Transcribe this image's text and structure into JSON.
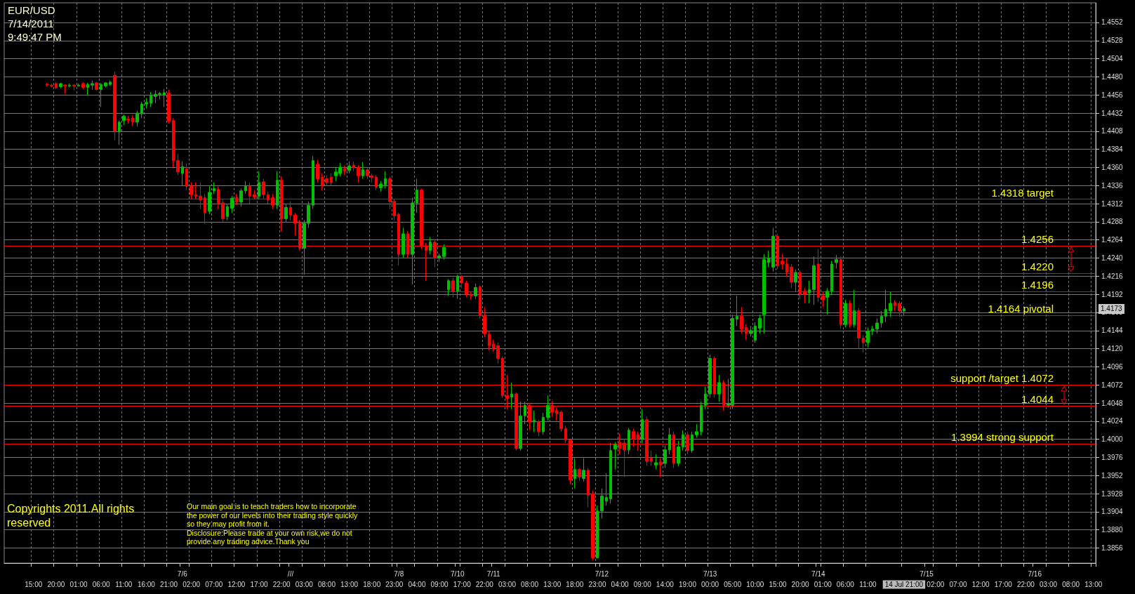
{
  "chart_data": {
    "type": "candlestick",
    "title": "EUR/USD",
    "subtitle": "7/14/2011\n9:49:47 PM",
    "categories": [
      null,
      null,
      null,
      null,
      null,
      null,
      "15:00",
      null,
      null,
      null,
      null,
      "20:00",
      null,
      null,
      null,
      null,
      "01:00",
      null,
      null,
      null,
      null,
      "06:00",
      null,
      null,
      null,
      null,
      "11:00",
      null,
      null,
      null,
      null,
      "16:00",
      null,
      null,
      null,
      null,
      "21:00",
      null,
      null,
      "7/6\n",
      null,
      "02:00",
      null,
      null,
      null,
      null,
      "07:00",
      null,
      null,
      null,
      null,
      "12:00",
      null,
      null,
      null,
      null,
      "17:00",
      null,
      null,
      null,
      null,
      "22:00",
      null,
      "///\n",
      null,
      null,
      "03:00",
      null,
      null,
      null,
      null,
      "08:00",
      null,
      null,
      null,
      null,
      "13:00",
      null,
      null,
      null,
      null,
      "18:00",
      null,
      null,
      null,
      null,
      "23:00",
      "7/8\n",
      null,
      null,
      null,
      "04:00",
      null,
      null,
      null,
      null,
      "09:00",
      null,
      null,
      null,
      "7/10\n",
      "17:00",
      null,
      null,
      null,
      null,
      "22:00",
      null,
      "7/11\n",
      null,
      null,
      "03:00",
      null,
      null,
      null,
      null,
      "08:00",
      null,
      null,
      null,
      null,
      "13:00",
      null,
      null,
      null,
      null,
      "18:00",
      null,
      null,
      null,
      null,
      "23:00",
      "7/12\n",
      null,
      null,
      null,
      "04:00",
      null,
      null,
      null,
      null,
      "09:00",
      null,
      null,
      null,
      null,
      "14:00",
      null,
      null,
      null,
      null,
      "19:00",
      null,
      null,
      null,
      null,
      "7/13\n00:00",
      null,
      null,
      null,
      null,
      "05:00",
      null,
      null,
      null,
      null,
      "10:00",
      null,
      null,
      null,
      null,
      "15:00",
      null,
      null,
      null,
      null,
      "20:00",
      null,
      null,
      null,
      "7/14\n",
      "01:00",
      null,
      null,
      null,
      null,
      "06:00",
      null,
      null,
      null,
      null,
      "11:00",
      null,
      null,
      null,
      null,
      null,
      null,
      null,
      "14 Jul 21:00",
      null,
      null,
      null,
      null,
      "7/15\n",
      null,
      "02:00",
      null,
      null,
      null,
      null,
      "07:00",
      null,
      null,
      null,
      null,
      "12:00",
      null,
      null,
      null,
      null,
      "17:00",
      null,
      null,
      null,
      null,
      "22:00",
      null,
      "7/16\n",
      null,
      null,
      "03:00",
      null,
      null,
      null,
      null,
      "08:00",
      null,
      null,
      null,
      null,
      "13:00"
    ],
    "ohlc": [
      null,
      null,
      null,
      null,
      null,
      null,
      null,
      null,
      null,
      [
        1.447,
        1.4472,
        1.4467,
        1.4469
      ],
      [
        1.4469,
        1.4471,
        1.4466,
        1.4468
      ],
      [
        1.4471,
        1.4473,
        1.4464,
        1.4466
      ],
      [
        1.4467,
        1.4472,
        1.4465,
        1.4471
      ],
      [
        1.4469,
        1.447,
        1.4458,
        1.4468
      ],
      [
        1.4468,
        1.4471,
        1.4466,
        1.4469
      ],
      [
        1.4469,
        1.447,
        1.4462,
        1.4468
      ],
      [
        1.4468,
        1.4471,
        1.4467,
        1.4469
      ],
      [
        1.4471,
        1.4473,
        1.4464,
        1.4466
      ],
      [
        1.4466,
        1.4472,
        1.4455,
        1.447
      ],
      [
        1.4469,
        1.4475,
        1.4463,
        1.4471
      ],
      [
        1.4472,
        1.4473,
        1.4462,
        1.4463
      ],
      [
        1.4463,
        1.4472,
        1.444,
        1.447
      ],
      [
        1.4468,
        1.4473,
        1.4466,
        1.4472
      ],
      [
        1.447,
        1.4475,
        1.4468,
        1.4473
      ],
      [
        1.4482,
        1.4487,
        1.4396,
        1.4408
      ],
      [
        1.4407,
        1.4422,
        1.439,
        1.442
      ],
      [
        1.4422,
        1.443,
        1.4416,
        1.4428
      ],
      [
        1.4424,
        1.4428,
        1.4418,
        1.4423
      ],
      [
        1.4425,
        1.4429,
        1.4415,
        1.442
      ],
      [
        1.442,
        1.4435,
        1.4414,
        1.4432
      ],
      [
        1.4431,
        1.4447,
        1.4425,
        1.4444
      ],
      [
        1.4444,
        1.4452,
        1.4438,
        1.4446
      ],
      [
        1.4445,
        1.446,
        1.444,
        1.4455
      ],
      [
        1.4454,
        1.4462,
        1.4445,
        1.4457
      ],
      [
        1.4457,
        1.446,
        1.445,
        1.4458
      ],
      [
        1.4456,
        1.4464,
        1.444,
        1.4459
      ],
      [
        1.4458,
        1.4463,
        1.4418,
        1.4421
      ],
      [
        1.4422,
        1.4425,
        1.436,
        1.4369
      ],
      [
        1.4369,
        1.4378,
        1.435,
        1.4354
      ],
      [
        1.4352,
        1.4368,
        1.4335,
        1.4361
      ],
      [
        1.4358,
        1.4365,
        1.433,
        1.4335
      ],
      [
        1.4335,
        1.434,
        1.4318,
        1.4324
      ],
      [
        1.4324,
        1.434,
        1.4318,
        1.4322
      ],
      [
        1.4322,
        1.434,
        1.4305,
        1.4317
      ],
      [
        1.432,
        1.4325,
        1.4285,
        1.43
      ],
      [
        1.4302,
        1.4335,
        1.4298,
        1.4327
      ],
      [
        1.4329,
        1.434,
        1.4325,
        1.4332
      ],
      [
        1.4331,
        1.4335,
        1.4305,
        1.4313
      ],
      [
        1.4313,
        1.4318,
        1.4288,
        1.4292
      ],
      [
        1.4295,
        1.4312,
        1.429,
        1.4308
      ],
      [
        1.4306,
        1.4322,
        1.43,
        1.4319
      ],
      [
        1.432,
        1.4325,
        1.431,
        1.4314
      ],
      [
        1.4314,
        1.4332,
        1.4308,
        1.4329
      ],
      [
        1.4329,
        1.4342,
        1.4325,
        1.4335
      ],
      [
        1.4335,
        1.434,
        1.4312,
        1.4322
      ],
      [
        1.4324,
        1.433,
        1.4318,
        1.4321
      ],
      [
        1.4322,
        1.4355,
        1.4318,
        1.434
      ],
      [
        1.4341,
        1.4345,
        1.4318,
        1.4324
      ],
      [
        1.4324,
        1.4328,
        1.4312,
        1.4317
      ],
      [
        1.432,
        1.4325,
        1.4305,
        1.431
      ],
      [
        1.431,
        1.4355,
        1.4305,
        1.4343
      ],
      [
        1.4343,
        1.4348,
        1.4275,
        1.4292
      ],
      [
        1.4292,
        1.4312,
        1.4288,
        1.4307
      ],
      [
        1.4307,
        1.4315,
        1.429,
        1.4297
      ],
      [
        1.4297,
        1.43,
        1.427,
        1.4286
      ],
      [
        1.4286,
        1.429,
        1.425,
        1.4253
      ],
      [
        1.4253,
        1.429,
        1.4218,
        1.4286
      ],
      [
        1.4286,
        1.4315,
        1.428,
        1.431
      ],
      [
        1.431,
        1.4375,
        1.4305,
        1.4369
      ],
      [
        1.4364,
        1.437,
        1.434,
        1.4345
      ],
      [
        1.4347,
        1.4352,
        1.433,
        1.4336
      ],
      [
        1.4345,
        1.435,
        1.4335,
        1.434
      ],
      [
        1.4347,
        1.4352,
        1.4336,
        1.434
      ],
      [
        1.4349,
        1.436,
        1.4342,
        1.4354
      ],
      [
        1.4352,
        1.4366,
        1.4348,
        1.436
      ],
      [
        1.4358,
        1.4362,
        1.435,
        1.4355
      ],
      [
        1.4356,
        1.4368,
        1.4352,
        1.4362
      ],
      [
        1.4363,
        1.4368,
        1.4355,
        1.436
      ],
      [
        1.436,
        1.4363,
        1.434,
        1.4349
      ],
      [
        1.4349,
        1.4367,
        1.4345,
        1.4357
      ],
      [
        1.4357,
        1.436,
        1.4345,
        1.4349
      ],
      [
        1.4349,
        1.4352,
        1.434,
        1.4347
      ],
      [
        1.4347,
        1.435,
        1.433,
        1.4334
      ],
      [
        1.4333,
        1.4342,
        1.4328,
        1.4338
      ],
      [
        1.4337,
        1.4355,
        1.4332,
        1.4345
      ],
      [
        1.4345,
        1.4348,
        1.4305,
        1.4315
      ],
      [
        1.4315,
        1.4318,
        1.429,
        1.4296
      ],
      [
        1.4298,
        1.43,
        1.423,
        1.4245
      ],
      [
        1.4245,
        1.428,
        1.424,
        1.4272
      ],
      [
        1.4272,
        1.4276,
        1.424,
        1.4245
      ],
      [
        1.4245,
        1.432,
        1.4205,
        1.4313
      ],
      [
        1.4313,
        1.4345,
        1.43,
        1.433
      ],
      [
        1.433,
        1.4332,
        1.4252,
        1.4256
      ],
      [
        1.4256,
        1.426,
        1.421,
        1.425
      ],
      [
        1.425,
        1.4268,
        1.4245,
        1.4261
      ],
      [
        1.4261,
        1.4264,
        1.4228,
        1.424
      ],
      [
        1.424,
        1.4246,
        1.4235,
        1.4243
      ],
      [
        1.4242,
        1.4258,
        1.4238,
        1.4254
      ],
      [
        1.4198,
        1.4212,
        1.419,
        1.421
      ],
      [
        1.421,
        1.4214,
        1.4188,
        1.4196
      ],
      [
        1.4196,
        1.4218,
        1.4186,
        1.4216
      ],
      [
        1.4216,
        1.4218,
        1.42,
        1.4207
      ],
      [
        1.4207,
        1.421,
        1.4188,
        1.4192
      ],
      [
        1.4192,
        1.4196,
        1.4185,
        1.419
      ],
      [
        1.419,
        1.4206,
        1.4186,
        1.4201
      ],
      [
        1.4202,
        1.4204,
        1.416,
        1.4164
      ],
      [
        1.4164,
        1.4175,
        1.4135,
        1.414
      ],
      [
        1.4139,
        1.4143,
        1.4118,
        1.4124
      ],
      [
        1.4126,
        1.4132,
        1.4116,
        1.412
      ],
      [
        1.4124,
        1.4128,
        1.41,
        1.4107
      ],
      [
        1.4107,
        1.411,
        1.4055,
        1.4058
      ],
      [
        1.4058,
        1.4085,
        1.404,
        1.4054
      ],
      [
        1.4056,
        1.4075,
        1.404,
        1.406
      ],
      [
        1.406,
        1.4062,
        1.3985,
        1.3988
      ],
      [
        1.3988,
        1.405,
        1.3985,
        1.4031
      ],
      [
        1.4031,
        1.405,
        1.402,
        1.4045
      ],
      [
        1.4045,
        1.4048,
        1.4012,
        1.4023
      ],
      [
        1.4023,
        1.4038,
        1.401,
        1.4025
      ],
      [
        1.4023,
        1.4026,
        1.4004,
        1.401
      ],
      [
        1.401,
        1.4035,
        1.4006,
        1.4029
      ],
      [
        1.4029,
        1.4058,
        1.4025,
        1.4045
      ],
      [
        1.4045,
        1.405,
        1.403,
        1.4036
      ],
      [
        1.4038,
        1.4042,
        1.4025,
        1.4034
      ],
      [
        1.4036,
        1.4038,
        1.401,
        1.4014
      ],
      [
        1.4014,
        1.4018,
        1.3995,
        1.3999
      ],
      [
        1.3999,
        1.4,
        1.394,
        1.3946
      ],
      [
        1.3948,
        1.3975,
        1.3935,
        1.396
      ],
      [
        1.396,
        1.3962,
        1.3945,
        1.395
      ],
      [
        1.3948,
        1.3975,
        1.3944,
        1.3959
      ],
      [
        1.3959,
        1.3962,
        1.391,
        1.3926
      ],
      [
        1.3928,
        1.3932,
        1.384,
        1.3843
      ],
      [
        1.3843,
        1.3912,
        1.3842,
        1.3905
      ],
      [
        1.3905,
        1.3935,
        1.3895,
        1.3925
      ],
      [
        1.3918,
        1.3955,
        1.3912,
        1.3923
      ],
      [
        1.3921,
        1.3995,
        1.3915,
        1.3985
      ],
      [
        1.3987,
        1.3996,
        1.396,
        1.3993
      ],
      [
        1.3996,
        1.4008,
        1.398,
        1.3988
      ],
      [
        1.3995,
        1.4,
        1.395,
        1.3986
      ],
      [
        1.3986,
        1.4015,
        1.398,
        1.4012
      ],
      [
        1.401,
        1.4014,
        1.399,
        1.4
      ],
      [
        1.4006,
        1.401,
        1.3985,
        1.4
      ],
      [
        1.4,
        1.404,
        1.3995,
        1.4026
      ],
      [
        1.4026,
        1.403,
        1.3965,
        1.3971
      ],
      [
        1.3975,
        1.3985,
        1.3965,
        1.3971
      ],
      [
        1.3966,
        1.398,
        1.396,
        1.3969
      ],
      [
        1.397,
        1.3975,
        1.395,
        1.3966
      ],
      [
        1.3968,
        1.3992,
        1.3962,
        1.3986
      ],
      [
        1.3986,
        1.4015,
        1.398,
        1.4006
      ],
      [
        1.4006,
        1.401,
        1.3962,
        1.3968
      ],
      [
        1.3968,
        1.3998,
        1.3964,
        1.399
      ],
      [
        1.399,
        1.4012,
        1.3985,
        1.4006
      ],
      [
        1.4006,
        1.401,
        1.398,
        1.3985
      ],
      [
        1.3985,
        1.401,
        1.3982,
        1.4006
      ],
      [
        1.4006,
        1.402,
        1.4002,
        1.401
      ],
      [
        1.401,
        1.405,
        1.4005,
        1.4045
      ],
      [
        1.4045,
        1.407,
        1.404,
        1.406
      ],
      [
        1.406,
        1.4112,
        1.4055,
        1.4107
      ],
      [
        1.4107,
        1.411,
        1.4055,
        1.406
      ],
      [
        1.406,
        1.4085,
        1.405,
        1.4075
      ],
      [
        1.4075,
        1.4078,
        1.4038,
        1.4045
      ],
      [
        1.4045,
        1.408,
        1.4042,
        1.4047
      ],
      [
        1.4045,
        1.4165,
        1.404,
        1.416
      ],
      [
        1.4159,
        1.419,
        1.415,
        1.4163
      ],
      [
        1.4163,
        1.4175,
        1.414,
        1.4146
      ],
      [
        1.4148,
        1.4152,
        1.4132,
        1.414
      ],
      [
        1.414,
        1.415,
        1.4136,
        1.4144
      ],
      [
        1.4131,
        1.4155,
        1.4128,
        1.415
      ],
      [
        1.4147,
        1.4165,
        1.414,
        1.416
      ],
      [
        1.4165,
        1.4245,
        1.414,
        1.4238
      ],
      [
        1.4234,
        1.425,
        1.4228,
        1.424
      ],
      [
        1.4228,
        1.428,
        1.4222,
        1.4269
      ],
      [
        1.4269,
        1.4272,
        1.4225,
        1.423
      ],
      [
        1.4236,
        1.4245,
        1.4225,
        1.4232
      ],
      [
        1.4232,
        1.424,
        1.4215,
        1.4221
      ],
      [
        1.4228,
        1.4232,
        1.42,
        1.4208
      ],
      [
        1.4208,
        1.4225,
        1.4195,
        1.4221
      ],
      [
        1.4221,
        1.4224,
        1.4185,
        1.4192
      ],
      [
        1.4196,
        1.42,
        1.418,
        1.4192
      ],
      [
        1.4194,
        1.421,
        1.418,
        1.4198
      ],
      [
        1.4198,
        1.4242,
        1.4178,
        1.423
      ],
      [
        1.4232,
        1.4252,
        1.4182,
        1.4188
      ],
      [
        1.419,
        1.4195,
        1.4175,
        1.4185
      ],
      [
        1.4188,
        1.42,
        1.4165,
        1.4196
      ],
      [
        1.4196,
        1.4236,
        1.4192,
        1.4232
      ],
      [
        1.4234,
        1.4244,
        1.4226,
        1.4238
      ],
      [
        1.4238,
        1.4242,
        1.4146,
        1.4152
      ],
      [
        1.4152,
        1.4185,
        1.4148,
        1.418
      ],
      [
        1.418,
        1.4184,
        1.4148,
        1.4152
      ],
      [
        1.4152,
        1.4198,
        1.4148,
        1.417
      ],
      [
        1.417,
        1.4174,
        1.412,
        1.4134
      ],
      [
        1.4134,
        1.4138,
        1.4115,
        1.4128
      ],
      [
        1.4128,
        1.4148,
        1.4122,
        1.4143
      ],
      [
        1.4143,
        1.415,
        1.4138,
        1.4146
      ],
      [
        1.4146,
        1.416,
        1.414,
        1.4154
      ],
      [
        1.4154,
        1.417,
        1.4148,
        1.4163
      ],
      [
        1.4163,
        1.4198,
        1.4155,
        1.4172
      ],
      [
        1.417,
        1.4195,
        1.4162,
        1.418
      ],
      [
        1.4181,
        1.4184,
        1.417,
        1.4177
      ],
      [
        1.418,
        1.4183,
        1.4162,
        1.417
      ],
      [
        1.417,
        1.4176,
        1.4164,
        1.4173
      ],
      null,
      null,
      null,
      null,
      null,
      null,
      null,
      null,
      null,
      null,
      null,
      null,
      null,
      null,
      null,
      null,
      null,
      null,
      null,
      null,
      null,
      null,
      null,
      null,
      null,
      null,
      null,
      null,
      null,
      null,
      null,
      null,
      null,
      null,
      null,
      null,
      null,
      null,
      null,
      null,
      null,
      null
    ],
    "colors": [
      null,
      null,
      null,
      null,
      null,
      null,
      null,
      null,
      null,
      "#ff0000",
      "#ff0000",
      "#ff0000",
      "#00c000",
      "#ff0000",
      "#00c000",
      "#ff0000",
      "#00c000",
      "#ff0000",
      "#00c000",
      "#00c000",
      "#ff0000",
      "#00c000",
      "#00c000",
      "#00c000",
      "#ff0000",
      "#00c000",
      "#00c000",
      "#ff0000",
      "#ff0000",
      "#00c000",
      "#00c000",
      "#00c000",
      "#00c000",
      "#00c000",
      "#00c000",
      "#00c000",
      "#ff0000",
      "#ff0000",
      "#ff0000",
      "#00c000",
      "#ff0000",
      "#ff0000",
      "#ff0000",
      "#ff0000",
      "#ff0000",
      "#00c000",
      "#00c000",
      "#ff0000",
      "#ff0000",
      "#00c000",
      "#00c000",
      "#ff0000",
      "#00c000",
      "#00c000",
      "#ff0000",
      "#ff0000",
      "#00c000",
      "#ff0000",
      "#ff0000",
      "#ff0000",
      "#00c000",
      "#ff0000",
      "#00c000",
      "#ff0000",
      "#ff0000",
      "#ff0000",
      "#00c000",
      "#00c000",
      "#00c000",
      "#ff0000",
      "#ff0000",
      "#ff0000",
      "#ff0000",
      "#00c000",
      "#00c000",
      "#ff0000",
      "#00c000",
      "#ff0000",
      "#ff0000",
      "#00c000",
      "#ff0000",
      "#ff0000",
      "#ff0000",
      "#00c000",
      "#00c000",
      "#ff0000",
      "#ff0000",
      "#ff0000",
      "#00c000",
      "#ff0000",
      "#00c000",
      "#00c000",
      "#ff0000",
      "#ff0000",
      "#00c000",
      "#ff0000",
      "#00c000",
      "#00c000",
      "#00c000",
      "#ff0000",
      "#00c000",
      "#ff0000",
      "#ff0000",
      "#ff0000",
      "#00c000",
      "#ff0000",
      "#ff0000",
      "#ff0000",
      "#ff0000",
      "#ff0000",
      "#ff0000",
      "#ff0000",
      "#00c000",
      "#ff0000",
      "#00c000",
      "#00c000",
      "#ff0000",
      "#00c000",
      "#ff0000",
      "#00c000",
      "#00c000",
      "#ff0000",
      "#ff0000",
      "#ff0000",
      "#ff0000",
      "#ff0000",
      "#00c000",
      "#ff0000",
      "#00c000",
      "#ff0000",
      "#ff0000",
      "#00c000",
      "#00c000",
      "#00c000",
      "#00c000",
      "#00c000",
      "#ff0000",
      "#ff0000",
      "#00c000",
      "#ff0000",
      "#ff0000",
      "#00c000",
      "#ff0000",
      "#ff0000",
      "#00c000",
      "#ff0000",
      "#00c000",
      "#00c000",
      "#ff0000",
      "#00c000",
      "#00c000",
      "#ff0000",
      "#00c000",
      "#00c000",
      "#00c000",
      "#00c000",
      "#00c000",
      "#ff0000",
      "#00c000",
      "#ff0000",
      "#00c000",
      "#00c000",
      "#00c000",
      "#ff0000",
      "#ff0000",
      "#00c000",
      "#00c000",
      "#00c000",
      "#00c000",
      "#00c000",
      "#00c000",
      "#ff0000",
      "#ff0000",
      "#ff0000",
      "#ff0000",
      "#00c000",
      "#ff0000",
      "#ff0000",
      "#00c000",
      "#00c000",
      "#ff0000",
      "#ff0000",
      "#00c000",
      "#00c000",
      "#00c000",
      "#ff0000",
      "#00c000",
      "#ff0000",
      "#00c000",
      "#ff0000",
      "#ff0000",
      "#00c000",
      "#00c000",
      "#00c000",
      "#00c000",
      "#00c000",
      "#00c000",
      "#ff0000",
      "#ff0000",
      "#00c000",
      null,
      null,
      null,
      null,
      null,
      null,
      null,
      null,
      null,
      null,
      null,
      null,
      null,
      null,
      null,
      null,
      null,
      null,
      null,
      null,
      null,
      null,
      null,
      null,
      null,
      null,
      null,
      null,
      null,
      null,
      null,
      null,
      null,
      null,
      null,
      null,
      null,
      null,
      null,
      null,
      null,
      null
    ],
    "ylim": [
      1.3836,
      1.4578
    ],
    "yticks": [
      1.3856,
      {
        "value": 1.388,
        "label": "1.3880"
      },
      1.3904,
      1.3928,
      1.3952,
      1.3976,
      {
        "value": 1.4,
        "label": "1.4000"
      },
      1.4024,
      1.4048,
      1.4072,
      1.4096,
      {
        "value": 1.412,
        "label": "1.4120"
      },
      1.4144,
      1.4168,
      1.4192,
      1.4216,
      {
        "value": 1.424,
        "label": "1.4240"
      },
      1.4264,
      1.4288,
      1.4312,
      1.4336,
      {
        "value": 1.436,
        "label": "1.4360"
      },
      1.4384,
      1.4408,
      1.4432,
      1.4456,
      {
        "value": 1.448,
        "label": "1.4480"
      },
      1.4504,
      1.4528,
      1.4552
    ],
    "grid": true,
    "ref_lines": [
      {
        "axis": "y",
        "value": 1.4318,
        "label": "1.4318 target",
        "color": "#ff0000"
      },
      {
        "axis": "y",
        "value": 1.4256,
        "label": "1.4256",
        "color": "#ff0000"
      },
      {
        "axis": "y",
        "value": 1.422,
        "label": "1.4220",
        "color": "#ff0000"
      },
      {
        "axis": "y",
        "value": 1.4196,
        "label": "1.4196",
        "color": "#ff0000"
      },
      {
        "axis": "y",
        "value": 1.4164,
        "label": "1.4164 pivotal",
        "color": "#ff0000"
      },
      {
        "axis": "y",
        "value": 1.4072,
        "label": "support /target 1.4072",
        "color": "#ff0000"
      },
      {
        "axis": "y",
        "value": 1.4044,
        "label": "1.4044",
        "color": "#ff0000"
      },
      {
        "axis": "y",
        "value": 1.3994,
        "label": "1.3994 strong support",
        "color": "#ff0000"
      }
    ],
    "annotations": [
      "Copyrights 2011.All rights reserved",
      "Our main goal is to teach traders how to incorporate the power of our levels into their trading style quickly so they may profit from it.",
      "Disclosure:Please trade at your own risk,we do not provide any trading advice.Thank you",
      "1.4173"
    ]
  }
}
